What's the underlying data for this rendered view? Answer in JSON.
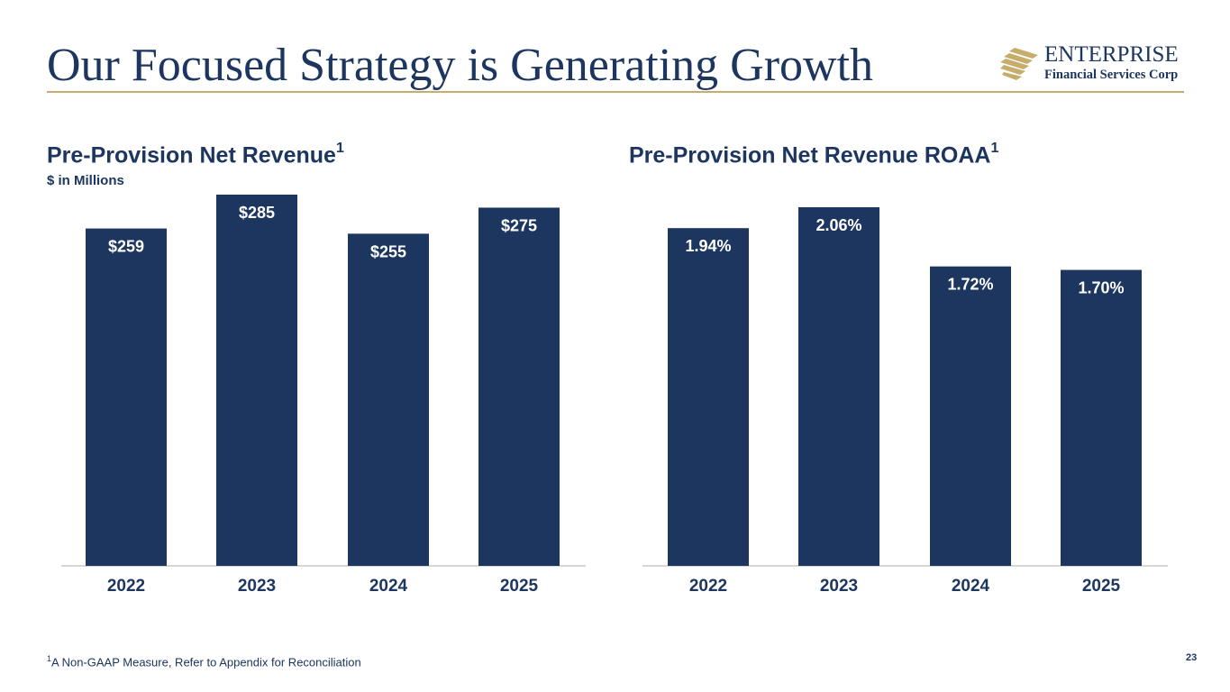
{
  "slide": {
    "title": "Our Focused Strategy is Generating Growth",
    "page_number": "23",
    "footnote_marker": "1",
    "footnote_text": "A Non-GAAP Measure, Refer to Appendix for Reconciliation"
  },
  "logo": {
    "name": "ENTERPRISE",
    "subtitle": "Financial Services Corp"
  },
  "colors": {
    "primary": "#1c3660",
    "accent_gold": "#c6ad6b",
    "label_on_bar": "#ffffff",
    "label_above_bar": "#1c3660"
  },
  "chart_data": [
    {
      "type": "bar",
      "title": "Pre-Provision Net Revenue",
      "title_superscript": "1",
      "unit_label": "$ in Millions",
      "categories": [
        "2022",
        "2023",
        "2024",
        "2025"
      ],
      "values": [
        259,
        285,
        255,
        275
      ],
      "labels": [
        "$259",
        "$285",
        "$255",
        "$275"
      ],
      "ylim": [
        0,
        285
      ],
      "xlabel": "",
      "ylabel": ""
    },
    {
      "type": "bar",
      "title": "Pre-Provision Net Revenue ROAA",
      "title_superscript": "1",
      "categories": [
        "2022",
        "2023",
        "2024",
        "2025"
      ],
      "values": [
        1.94,
        2.06,
        1.72,
        1.7
      ],
      "labels": [
        "1.94%",
        "2.06%",
        "1.72%",
        "1.70%"
      ],
      "ylim": [
        0,
        2.06
      ],
      "xlabel": "",
      "ylabel": ""
    }
  ]
}
